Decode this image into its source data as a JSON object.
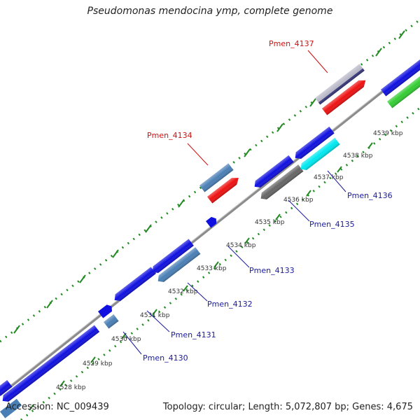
{
  "title": "Pseudomonas mendocina ymp, complete genome",
  "footer": {
    "accession": "Accession: NC_009439",
    "summary": "Topology: circular; Length: 5,072,807 bp; Genes: 4,675"
  },
  "colors": {
    "backbone": "#999999",
    "tick_green": "#228b22",
    "blue": "#1010e0",
    "steel": "#4a7fb5",
    "red": "#ee1111",
    "grey": "#666666",
    "silver": "#b8b8c8",
    "cyan": "#00e8f0",
    "green": "#33cc33"
  },
  "kbp_labels": [
    "4528 kbp",
    "4529 kbp",
    "4530 kbp",
    "4531 kbp",
    "4532 kbp",
    "4533 kbp",
    "4534 kbp",
    "4535 kbp",
    "4536 kbp",
    "4537 kbp",
    "4538 kbp",
    "4539 kbp"
  ],
  "gene_labels": {
    "Pmen_4130": "Pmen_4130",
    "Pmen_4131": "Pmen_4131",
    "Pmen_4132": "Pmen_4132",
    "Pmen_4133": "Pmen_4133",
    "Pmen_4134": "Pmen_4134",
    "Pmen_4135": "Pmen_4135",
    "Pmen_4136": "Pmen_4136",
    "Pmen_4137": "Pmen_4137"
  }
}
